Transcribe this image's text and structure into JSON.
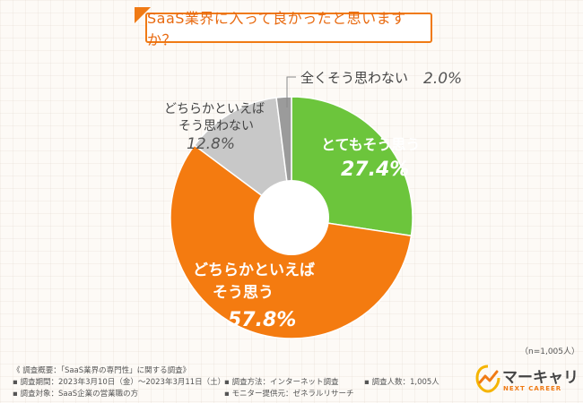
{
  "title": "SaaS業界に入って良かったと思いますか？",
  "chart_data": {
    "type": "pie",
    "title": "SaaS業界に入って良かったと思いますか？",
    "slices": [
      {
        "label": "とてもそう思う",
        "value": 27.4,
        "display": "27.4%",
        "color": "#6cc53c"
      },
      {
        "label": "どちらかといえばそう思う",
        "value": 57.8,
        "display": "57.8%",
        "color": "#f47b10"
      },
      {
        "label": "どちらかといえばそう思わない",
        "value": 12.8,
        "display": "12.8%",
        "color": "#c8c8c8"
      },
      {
        "label": "全くそう思わない",
        "value": 2.0,
        "display": "2.0%",
        "color": "#9b9b9b"
      }
    ]
  },
  "labels": {
    "very_yes": "とてもそう思う",
    "rather_yes_1": "どちらかといえば",
    "rather_yes_2": "そう思う",
    "rather_no_1": "どちらかといえば",
    "rather_no_2": "そう思わない",
    "not_at_all": "全くそう思わない"
  },
  "sample_size": "（n=1,005人）",
  "footer": {
    "overview": "《 調査概要：「SaaS業界の専門性」に関する調査》",
    "period": "▪ 調査期間：2023年3月10日（金）～2023年3月11日（土）",
    "method": "▪ 調査方法：インターネット調査",
    "count": "▪ 調査人数：1,005人",
    "target": "▪ 調査対象：SaaS企業の営業職の方",
    "monitor": "▪ モニター提供元：ゼネラルリサーチ"
  },
  "logo": {
    "name": "マーキャリ",
    "sub": "NEXT CAREER"
  },
  "colors": {
    "accent": "#f07a14",
    "green": "#6cc53c",
    "orange": "#f47b10",
    "light_gray": "#c8c8c8",
    "dark_gray": "#9b9b9b"
  }
}
